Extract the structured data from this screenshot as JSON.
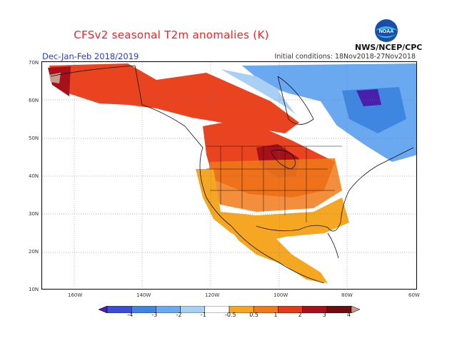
{
  "header": {
    "title": "CFSv2 seasonal T2m anomalies (K)",
    "season": "Dec-Jan-Feb 2018/2019",
    "initial_conditions": "Initial conditions: 18Nov2018-27Nov2018",
    "agency": "NWS/NCEP/CPC",
    "logo_text": "NOAA"
  },
  "map": {
    "lat_labels": [
      "70N",
      "60N",
      "50N",
      "40N",
      "30N",
      "20N",
      "10N"
    ],
    "lon_labels": [
      "160W",
      "140W",
      "120W",
      "100W",
      "80W",
      "60W"
    ]
  },
  "colorbar": {
    "labels": [
      "-4",
      "-3",
      "-2",
      "-1",
      "-0.5",
      "0.5",
      "1",
      "2",
      "3",
      "4"
    ],
    "colors": [
      "#4a1fae",
      "#3b4fd6",
      "#3e86e0",
      "#6aa8f0",
      "#a9cff5",
      "#ffffff",
      "#f5a623",
      "#f07a1a",
      "#e23a1a",
      "#a8101a",
      "#6e0c10",
      "#c89a8a"
    ]
  }
}
